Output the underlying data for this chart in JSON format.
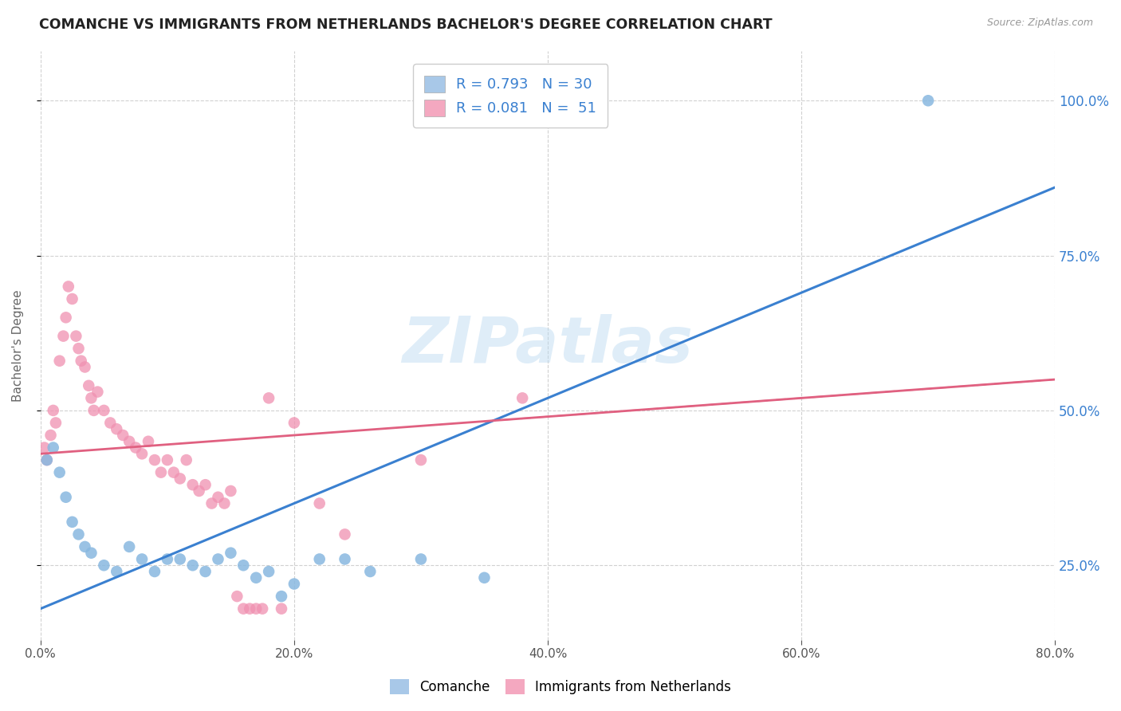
{
  "title": "COMANCHE VS IMMIGRANTS FROM NETHERLANDS BACHELOR'S DEGREE CORRELATION CHART",
  "source": "Source: ZipAtlas.com",
  "ylabel": "Bachelor's Degree",
  "xticks": [
    0,
    20,
    40,
    60,
    80
  ],
  "yticks": [
    25,
    50,
    75,
    100
  ],
  "yticklabels_right": [
    "25.0%",
    "50.0%",
    "75.0%",
    "100.0%"
  ],
  "xlim": [
    0,
    80
  ],
  "ylim": [
    13,
    108
  ],
  "legend1_label": "R = 0.793   N = 30",
  "legend2_label": "R = 0.081   N =  51",
  "legend1_color": "#a8c8e8",
  "legend2_color": "#f4a8c0",
  "scatter_blue_color": "#88b8e0",
  "scatter_pink_color": "#f090b0",
  "line_blue_color": "#3a80d0",
  "line_pink_color": "#e06080",
  "watermark": "ZIPatlas",
  "background_color": "#ffffff",
  "grid_color": "#cccccc",
  "title_color": "#222222",
  "axis_label_color": "#666666",
  "right_tick_color": "#3a80d0",
  "blue_scatter_x": [
    0.5,
    1.0,
    1.5,
    2.0,
    2.5,
    3.0,
    3.5,
    4.0,
    5.0,
    6.0,
    7.0,
    8.0,
    9.0,
    10.0,
    11.0,
    12.0,
    13.0,
    14.0,
    15.0,
    16.0,
    17.0,
    18.0,
    19.0,
    20.0,
    22.0,
    24.0,
    26.0,
    30.0,
    35.0,
    70.0
  ],
  "blue_scatter_y": [
    42,
    44,
    40,
    36,
    32,
    30,
    28,
    27,
    25,
    24,
    28,
    26,
    24,
    26,
    26,
    25,
    24,
    26,
    27,
    25,
    23,
    24,
    20,
    22,
    26,
    26,
    24,
    26,
    23,
    100
  ],
  "pink_scatter_x": [
    0.3,
    0.5,
    0.8,
    1.0,
    1.2,
    1.5,
    1.8,
    2.0,
    2.2,
    2.5,
    2.8,
    3.0,
    3.2,
    3.5,
    3.8,
    4.0,
    4.2,
    4.5,
    5.0,
    5.5,
    6.0,
    6.5,
    7.0,
    7.5,
    8.0,
    8.5,
    9.0,
    9.5,
    10.0,
    10.5,
    11.0,
    11.5,
    12.0,
    12.5,
    13.0,
    13.5,
    14.0,
    14.5,
    15.0,
    15.5,
    16.0,
    16.5,
    17.0,
    17.5,
    18.0,
    19.0,
    20.0,
    22.0,
    24.0,
    30.0,
    38.0
  ],
  "pink_scatter_y": [
    44,
    42,
    46,
    50,
    48,
    58,
    62,
    65,
    70,
    68,
    62,
    60,
    58,
    57,
    54,
    52,
    50,
    53,
    50,
    48,
    47,
    46,
    45,
    44,
    43,
    45,
    42,
    40,
    42,
    40,
    39,
    42,
    38,
    37,
    38,
    35,
    36,
    35,
    37,
    20,
    18,
    18,
    18,
    18,
    52,
    18,
    48,
    35,
    30,
    42,
    52
  ],
  "blue_trend_x0": 0,
  "blue_trend_y0": 18,
  "blue_trend_x1": 80,
  "blue_trend_y1": 86,
  "pink_trend_x0": 0,
  "pink_trend_y0": 43,
  "pink_trend_x1": 80,
  "pink_trend_y1": 55
}
